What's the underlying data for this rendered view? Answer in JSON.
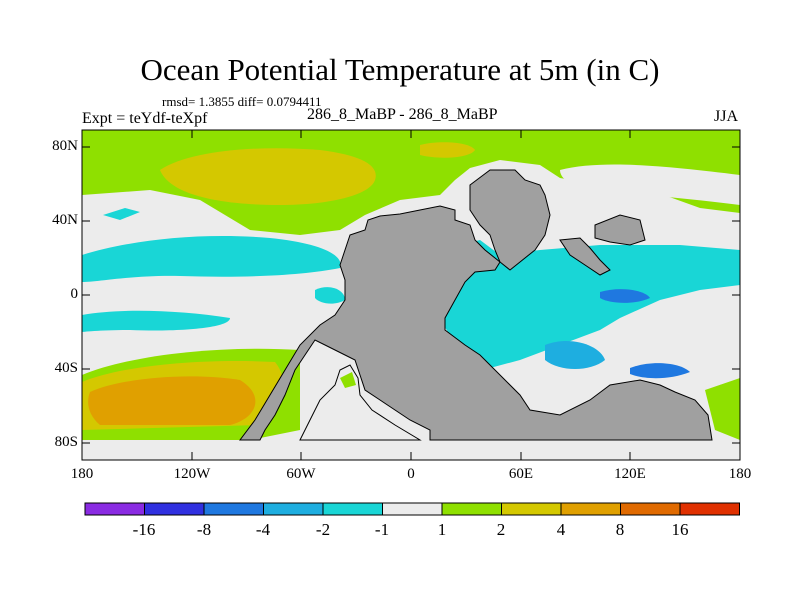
{
  "title": "Ocean Potential Temperature at 5m (in C)",
  "stats_line": "rmsd= 1.3855 diff= 0.0794411",
  "experiment_label": "Expt = teYdf-teXpf",
  "subtitle": "286_8_MaBP - 286_8_MaBP",
  "season": "JJA",
  "axes": {
    "lat_ticks": [
      "80N",
      "40N",
      "0",
      "40S",
      "80S"
    ],
    "lon_ticks": [
      "180",
      "120W",
      "60W",
      "0",
      "60E",
      "120E",
      "180"
    ]
  },
  "colorbar": {
    "colors": [
      "#8a2be2",
      "#3030e0",
      "#1f78e0",
      "#1eaee0",
      "#19d6d6",
      "#ececec",
      "#8fe000",
      "#d4c800",
      "#e0a000",
      "#e06a00",
      "#e03000"
    ],
    "labels": [
      "-16",
      "-8",
      "-4",
      "-2",
      "-1",
      "1",
      "2",
      "4",
      "8",
      "16"
    ]
  },
  "colors": {
    "land": "#a0a0a0",
    "ocean_neutral": "#ececec",
    "warm_light": "#8fe000",
    "warm_mid": "#d4c800",
    "warm_high": "#e0a000",
    "cool_light": "#19d6d6",
    "cool_mid": "#1eaee0",
    "cool_high": "#1f78e0"
  }
}
